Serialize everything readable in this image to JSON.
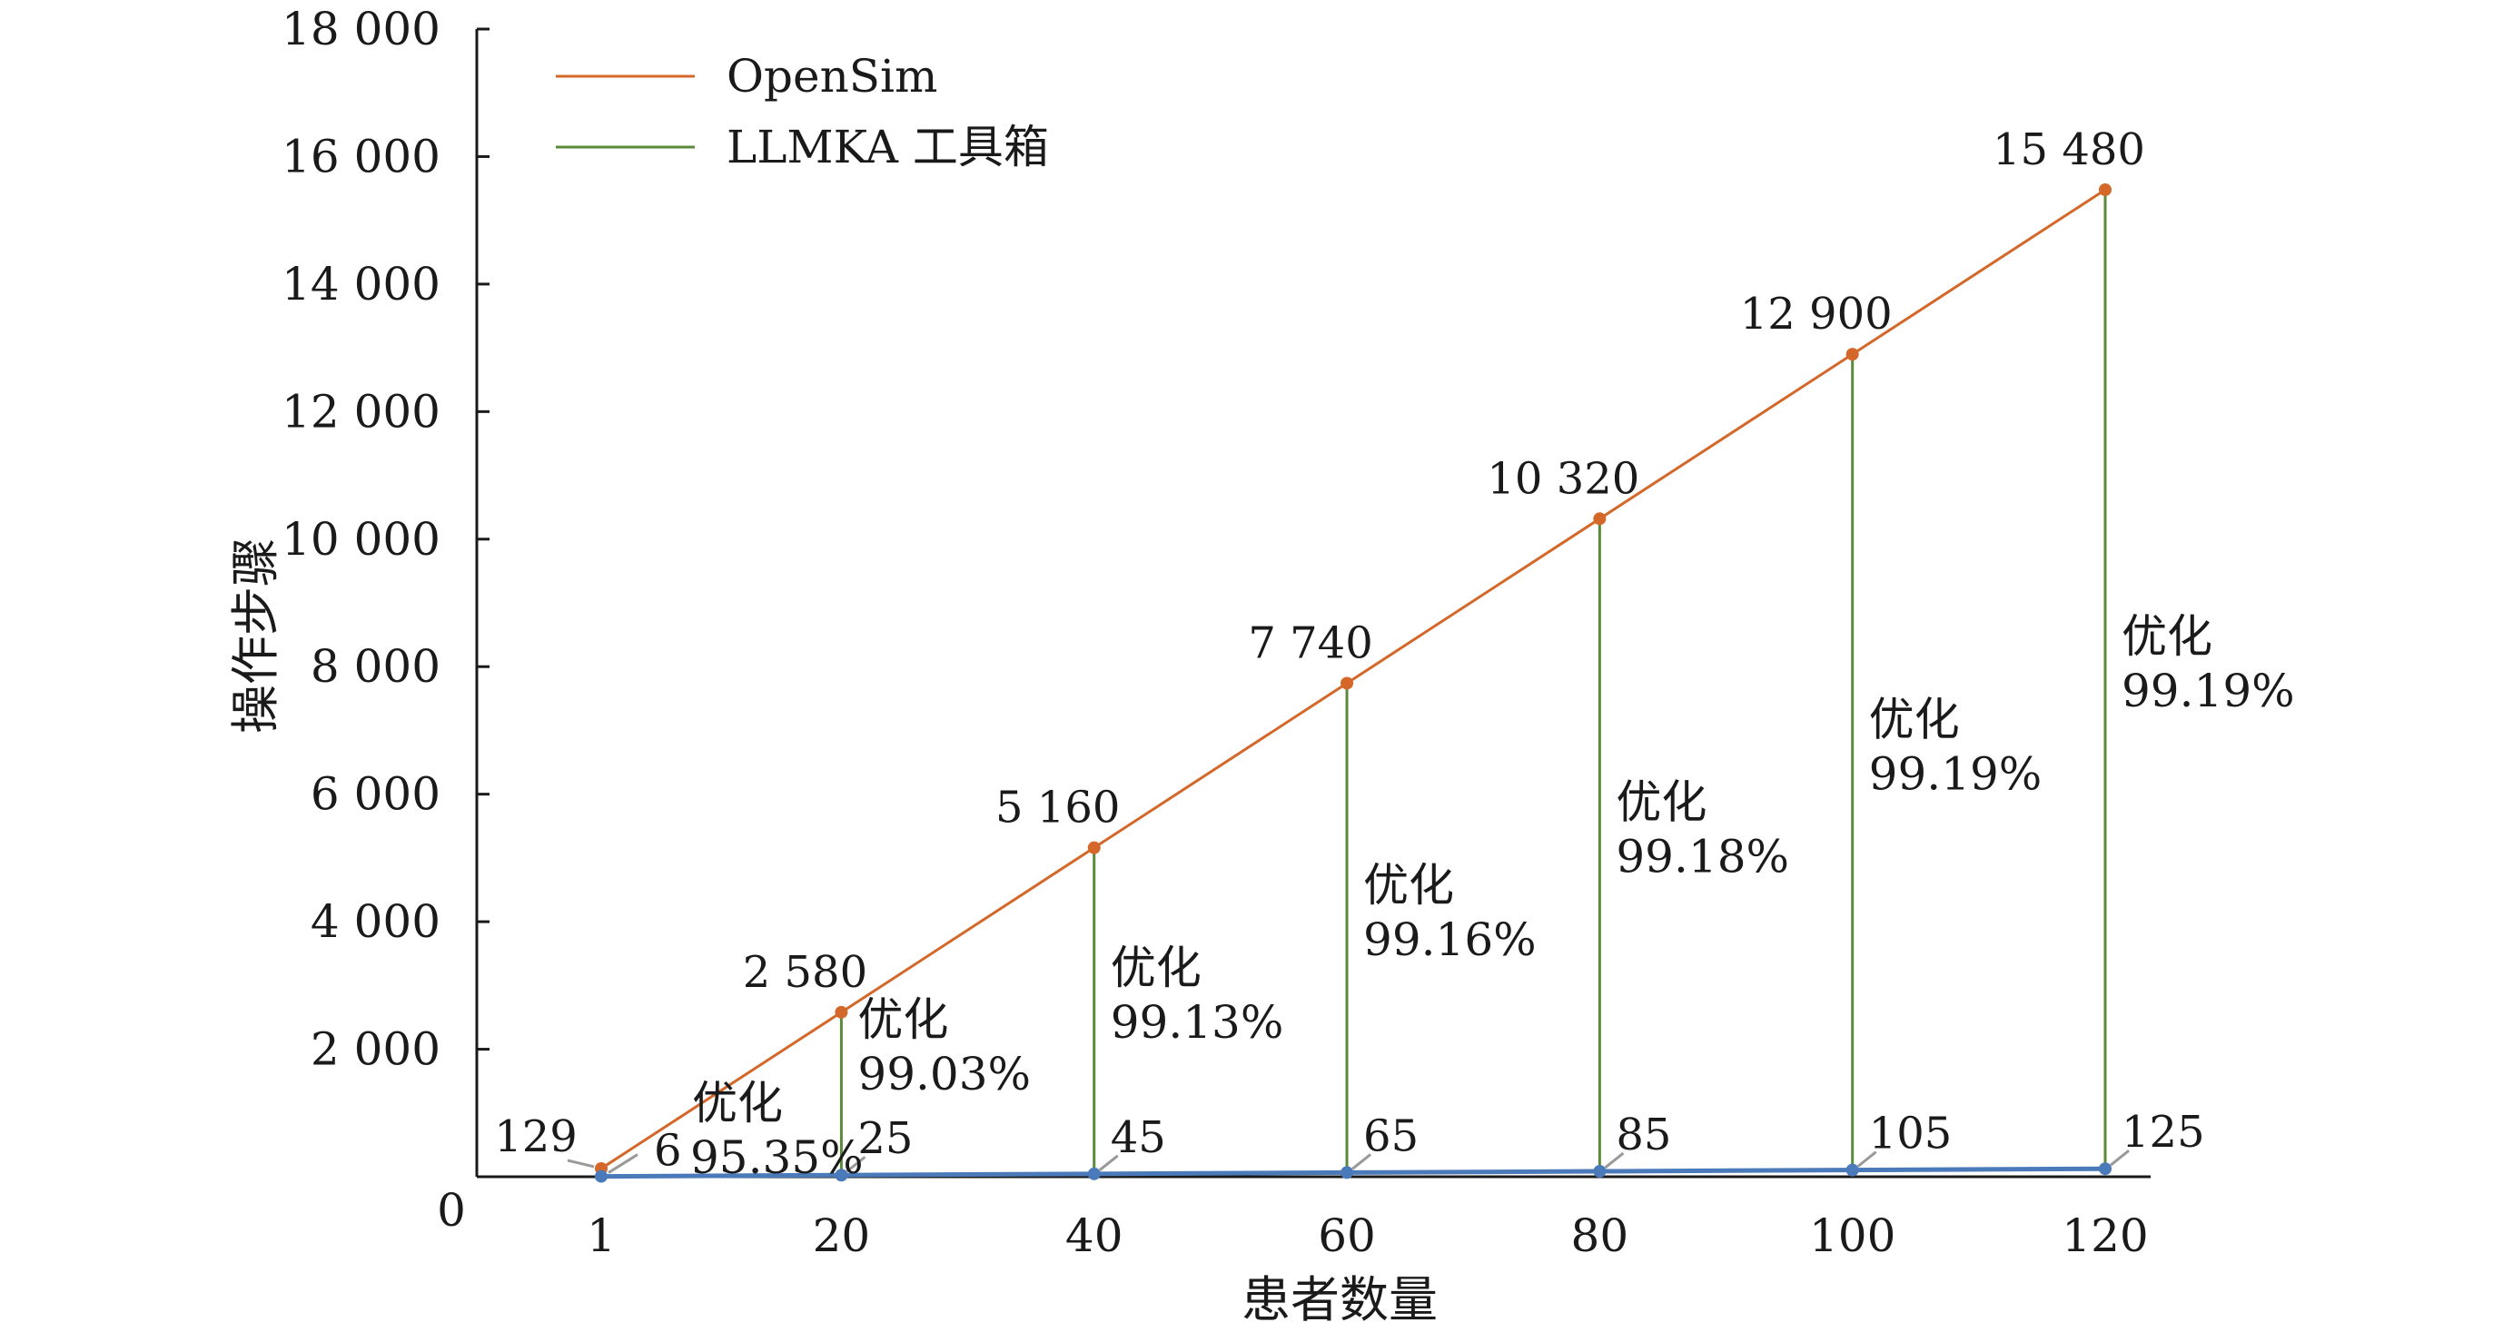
{
  "chart_data": {
    "type": "line",
    "xlabel": "患者数量",
    "ylabel": "操作步骤",
    "categories": [
      "1",
      "20",
      "40",
      "60",
      "80",
      "100",
      "120"
    ],
    "x": [
      1,
      20,
      40,
      60,
      80,
      100,
      120
    ],
    "ylim": [
      0,
      18000
    ],
    "yticks": [
      0,
      2000,
      4000,
      6000,
      8000,
      10000,
      12000,
      14000,
      16000,
      18000
    ],
    "ytick_labels": [
      "0",
      "2 000",
      "4 000",
      "6 000",
      "8 000",
      "10 000",
      "12 000",
      "14 000",
      "16 000",
      "18 000"
    ],
    "legend_position": "top-left",
    "grid": false,
    "series": [
      {
        "name": "OpenSim",
        "color": "#d4672a",
        "values": [
          129,
          2580,
          5160,
          7740,
          10320,
          12900,
          15480
        ],
        "labels": [
          "129",
          "2 580",
          "5 160",
          "7 740",
          "10 320",
          "12 900",
          "15 480"
        ]
      },
      {
        "name": "LLMKA 工具箱",
        "color": "#4a7aba",
        "legend_color": "#5a8a3a",
        "values": [
          6,
          25,
          45,
          65,
          85,
          105,
          125
        ],
        "labels": [
          "6",
          "25",
          "45",
          "65",
          "85",
          "105",
          "125"
        ]
      }
    ],
    "annotations": [
      {
        "x": 1,
        "line1": "优化",
        "line2": "95.35%"
      },
      {
        "x": 20,
        "line1": "优化",
        "line2": "99.03%"
      },
      {
        "x": 40,
        "line1": "优化",
        "line2": "99.13%"
      },
      {
        "x": 60,
        "line1": "优化",
        "line2": "99.16%"
      },
      {
        "x": 80,
        "line1": "优化",
        "line2": "99.18%"
      },
      {
        "x": 100,
        "line1": "优化",
        "line2": "99.19%"
      },
      {
        "x": 120,
        "line1": "优化",
        "line2": "99.19%"
      }
    ],
    "drop_line_color": "#5a8a3a",
    "axis_color": "#1a1a1a"
  }
}
